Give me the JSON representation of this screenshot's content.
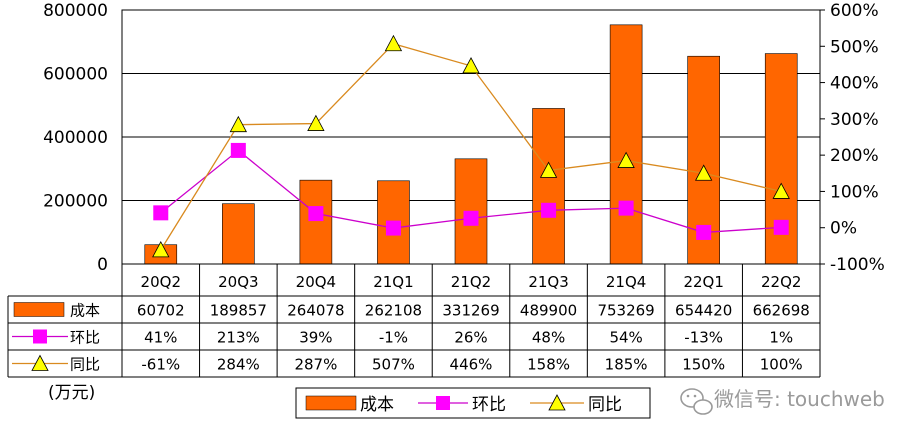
{
  "chart_data": {
    "type": "bar",
    "categories": [
      "20Q2",
      "20Q3",
      "20Q4",
      "21Q1",
      "21Q2",
      "21Q3",
      "21Q4",
      "22Q1",
      "22Q2"
    ],
    "series": [
      {
        "name": "成本",
        "kind": "bar",
        "axis": "left",
        "color": "#FF6600",
        "values": [
          60702,
          189857,
          264078,
          262108,
          331269,
          489900,
          753269,
          654420,
          662698
        ],
        "labels": [
          "60702",
          "189857",
          "264078",
          "262108",
          "331269",
          "489900",
          "753269",
          "654420",
          "662698"
        ]
      },
      {
        "name": "环比",
        "kind": "line",
        "marker": "square",
        "axis": "right",
        "color": "#CC00CC",
        "values": [
          41,
          213,
          39,
          -1,
          26,
          48,
          54,
          -13,
          1
        ],
        "labels": [
          "41%",
          "213%",
          "39%",
          "-1%",
          "26%",
          "48%",
          "54%",
          "-13%",
          "1%"
        ]
      },
      {
        "name": "同比",
        "kind": "line",
        "marker": "triangle",
        "axis": "right",
        "color": "#D98A1F",
        "values": [
          -61,
          284,
          287,
          507,
          446,
          158,
          185,
          150,
          100
        ],
        "labels": [
          "-61%",
          "284%",
          "287%",
          "507%",
          "446%",
          "158%",
          "185%",
          "150%",
          "100%"
        ]
      }
    ],
    "y_left": {
      "ylim": [
        0,
        800000
      ],
      "ticks": [
        "0",
        "200000",
        "400000",
        "600000",
        "800000"
      ]
    },
    "y_right": {
      "ylim": [
        -100,
        600
      ],
      "ticks": [
        "-100%",
        "0%",
        "100%",
        "200%",
        "300%",
        "400%",
        "500%",
        "600%"
      ]
    },
    "unit_label": "(万元)",
    "grid": true,
    "legend_position": "bottom",
    "data_table": true
  },
  "watermark": "微信号: touchweb",
  "colors": {
    "bar": "#FF6600",
    "qoq": "#CC00CC",
    "yoy": "#D98A1F",
    "marker_fill": "#FFFF00"
  }
}
